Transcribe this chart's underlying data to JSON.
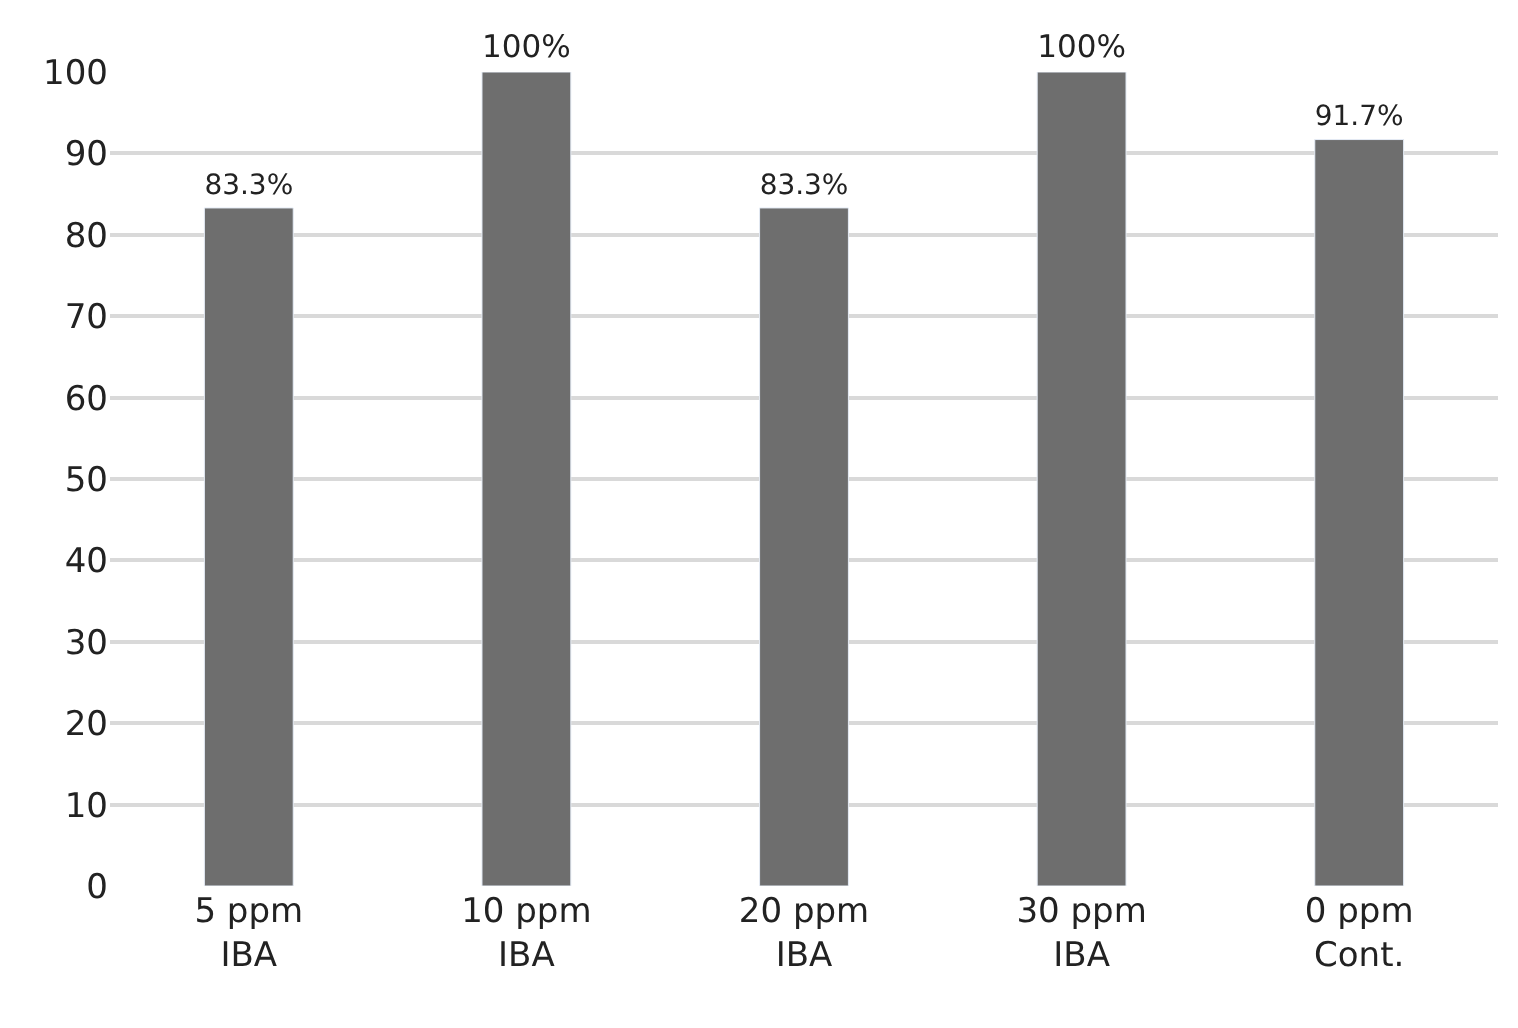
{
  "chart_data": {
    "type": "bar",
    "categories": [
      "5 ppm\nIBA",
      "10 ppm\nIBA",
      "20 ppm\nIBA",
      "30 ppm\nIBA",
      "0 ppm\nCont."
    ],
    "values": [
      83.3,
      100,
      83.3,
      100,
      91.7
    ],
    "value_labels": [
      "83.3%",
      "100%",
      "83.3%",
      "100%",
      "91.7%"
    ],
    "color": "#6e6e6e",
    "ylim": [
      0,
      100
    ],
    "yticks": [
      0,
      10,
      20,
      30,
      40,
      50,
      60,
      70,
      80,
      90,
      100
    ],
    "grid": "y",
    "legend": false
  }
}
